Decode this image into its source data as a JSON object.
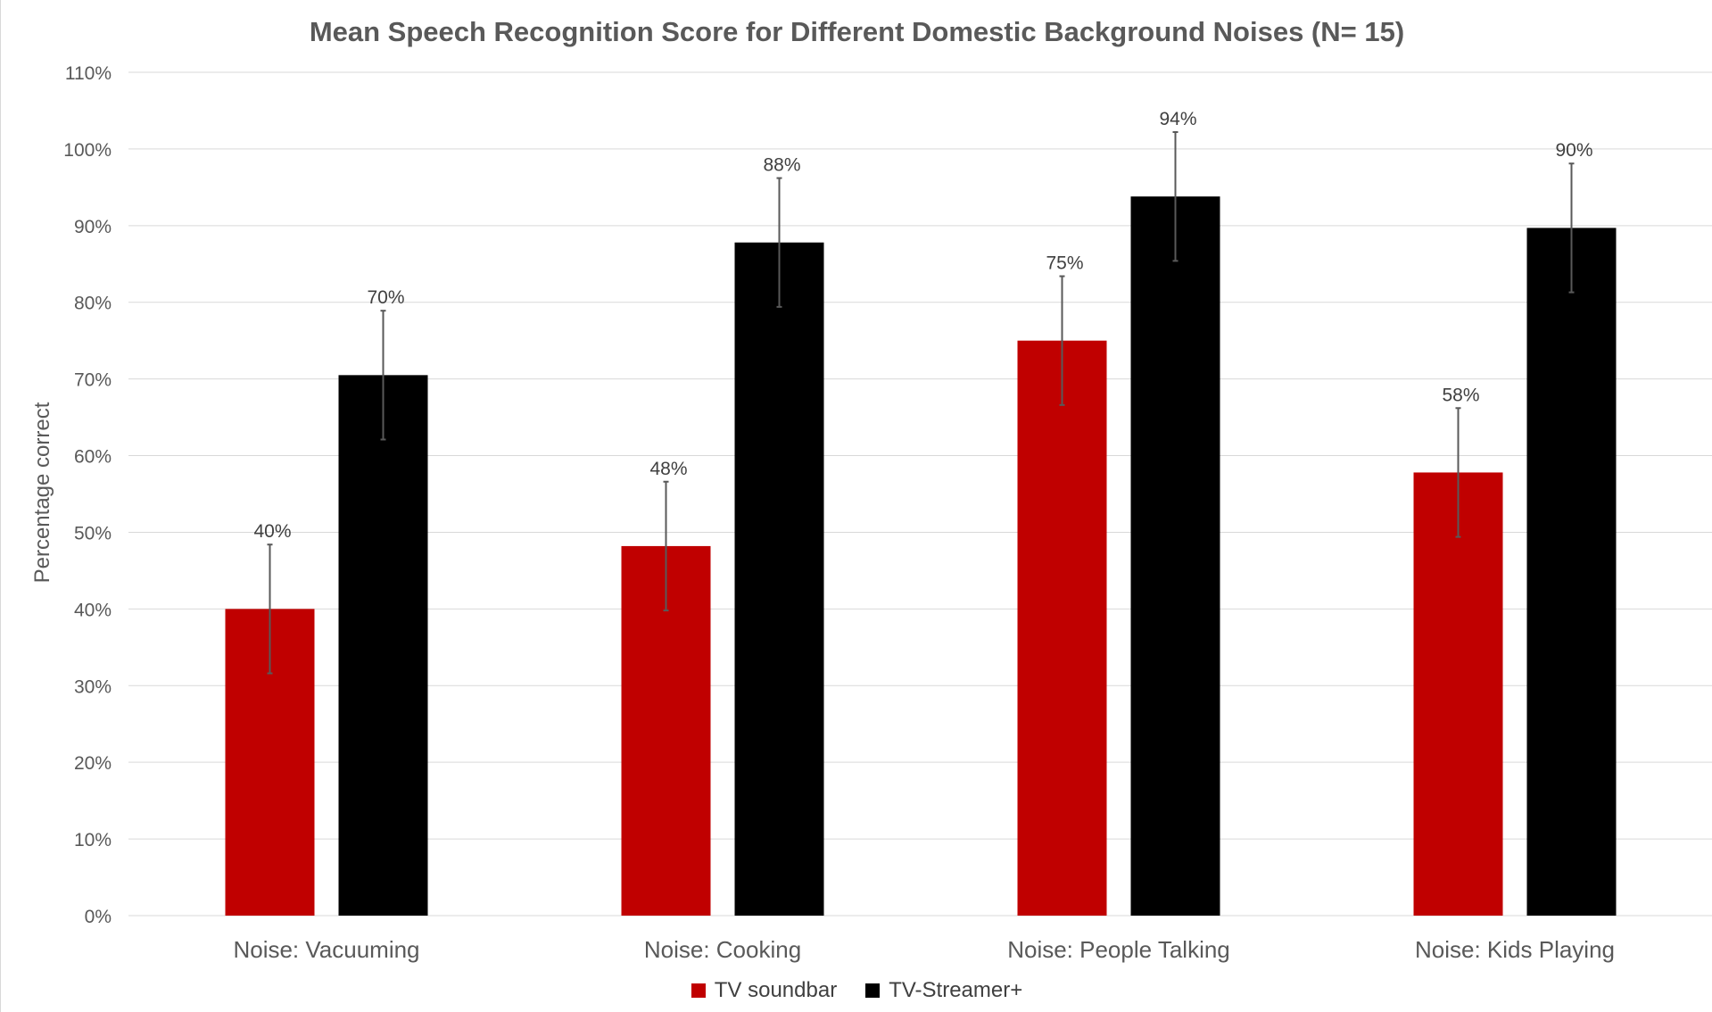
{
  "chart_data": {
    "type": "bar",
    "title": "Mean Speech Recognition Score for Different Domestic Background Noises (N= 15)",
    "xlabel": "",
    "ylabel": "Percentage correct",
    "ylim": [
      0,
      110
    ],
    "y_ticks": [
      "0%",
      "10%",
      "20%",
      "30%",
      "40%",
      "50%",
      "60%",
      "70%",
      "80%",
      "90%",
      "100%",
      "110%"
    ],
    "categories": [
      "Noise: Vacuuming",
      "Noise: Cooking",
      "Noise: People Talking",
      "Noise: Kids Playing"
    ],
    "series": [
      {
        "name": "TV soundbar",
        "color": "#c00000",
        "values": [
          40,
          48.2,
          75,
          57.8
        ],
        "labels": [
          "40%",
          "48%",
          "75%",
          "58%"
        ],
        "error": [
          8.4,
          8.4,
          8.4,
          8.4
        ]
      },
      {
        "name": "TV-Streamer+",
        "color": "#000000",
        "values": [
          70.5,
          87.8,
          93.8,
          89.7
        ],
        "labels": [
          "70%",
          "88%",
          "94%",
          "90%"
        ],
        "error": [
          8.4,
          8.4,
          8.4,
          8.4
        ]
      }
    ],
    "grid": true,
    "legend": "bottom",
    "colors": {
      "grid": "#d9d9d9",
      "axis_text": "#595959",
      "error_bar": "#595959"
    }
  }
}
